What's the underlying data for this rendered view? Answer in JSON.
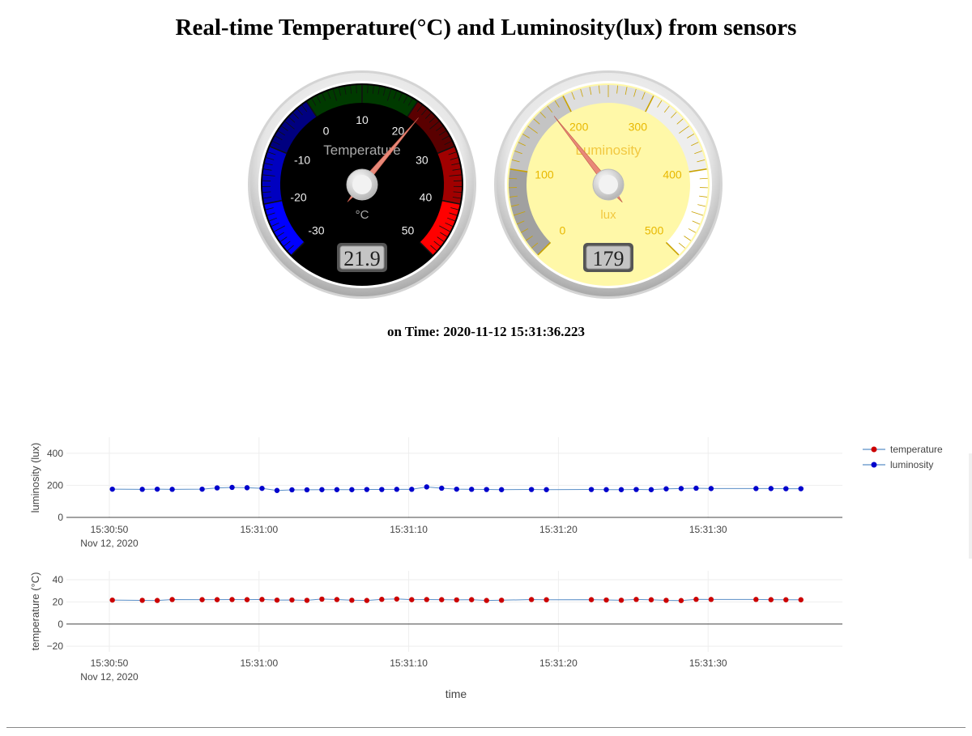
{
  "page": {
    "title": "Real-time Temperature(°C) and Luminosity(lux) from sensors",
    "time_prefix": "on Time:",
    "time_value": "2020-11-12 15:31:36.223"
  },
  "gauges": {
    "temperature": {
      "title": "Temperature",
      "units": "°C",
      "value": 21.9,
      "display": "21.9",
      "min": -30,
      "max": 50,
      "major_ticks": [
        "-30",
        "-20",
        "-10",
        "0",
        "10",
        "20",
        "30",
        "40",
        "50"
      ],
      "colors": {
        "plate": "#000000",
        "numbers": "#eeeeee",
        "title": "#aaaaaa",
        "needle": "#e88878"
      },
      "highlights": [
        {
          "from": -30,
          "to": -20,
          "color": "#0000ff"
        },
        {
          "from": -20,
          "to": -10,
          "color": "#0000c0"
        },
        {
          "from": -10,
          "to": 0,
          "color": "#000080"
        },
        {
          "from": 0,
          "to": 20,
          "color": "#003a00"
        },
        {
          "from": 20,
          "to": 30,
          "color": "#5a0000"
        },
        {
          "from": 30,
          "to": 40,
          "color": "#a00000"
        },
        {
          "from": 40,
          "to": 50,
          "color": "#ff0000"
        }
      ]
    },
    "luminosity": {
      "title": "Luminosity",
      "units": "lux",
      "value": 179,
      "display": "179",
      "min": 0,
      "max": 500,
      "major_ticks": [
        "0",
        "100",
        "200",
        "300",
        "400",
        "500"
      ],
      "colors": {
        "plate": "#fff8a8",
        "numbers": "#e8b800",
        "title": "#f2c840",
        "needle": "#e88878"
      },
      "highlights": [
        {
          "from": 0,
          "to": 100,
          "color": "#a0a0a0"
        },
        {
          "from": 100,
          "to": 200,
          "color": "#c4c4c4"
        },
        {
          "from": 200,
          "to": 300,
          "color": "#dedede"
        },
        {
          "from": 300,
          "to": 400,
          "color": "#eeeeee"
        },
        {
          "from": 400,
          "to": 500,
          "color": "#ffffff"
        }
      ]
    }
  },
  "chart_data": {
    "type": "line",
    "xlabel": "time",
    "x_range": [
      "15:30:50",
      "15:31:36"
    ],
    "x_ticks": [
      "15:30:50",
      "15:31:00",
      "15:31:10",
      "15:31:20",
      "15:31:30"
    ],
    "x_date_label": "Nov 12, 2020",
    "legend_position": "top-right",
    "grid": true,
    "x": [
      "15:30:50.2",
      "15:30:52.2",
      "15:30:53.2",
      "15:30:54.2",
      "15:30:56.2",
      "15:30:57.2",
      "15:30:58.2",
      "15:30:59.2",
      "15:31:00.2",
      "15:31:01.2",
      "15:31:02.2",
      "15:31:03.2",
      "15:31:04.2",
      "15:31:05.2",
      "15:31:06.2",
      "15:31:07.2",
      "15:31:08.2",
      "15:31:09.2",
      "15:31:10.2",
      "15:31:11.2",
      "15:31:12.2",
      "15:31:13.2",
      "15:31:14.2",
      "15:31:15.2",
      "15:31:16.2",
      "15:31:18.2",
      "15:31:19.2",
      "15:31:22.2",
      "15:31:23.2",
      "15:31:24.2",
      "15:31:25.2",
      "15:31:26.2",
      "15:31:27.2",
      "15:31:28.2",
      "15:31:29.2",
      "15:31:30.2",
      "15:31:33.2",
      "15:31:34.2",
      "15:31:35.2",
      "15:31:36.2"
    ],
    "series": [
      {
        "name": "temperature",
        "color": "#cc0000",
        "line_color": "#5a8fc8",
        "ylabel": "temperature (°C)",
        "ylim": [
          -25,
          48
        ],
        "y_ticks": [
          -20,
          0,
          20,
          40
        ],
        "values": [
          21.6,
          21.4,
          21.3,
          22.1,
          22.0,
          22.0,
          22.1,
          22.0,
          22.2,
          21.6,
          21.7,
          21.4,
          22.5,
          22.1,
          21.5,
          21.3,
          22.3,
          22.6,
          22.0,
          22.1,
          22.0,
          21.8,
          22.0,
          21.3,
          21.5,
          22.1,
          21.9,
          22.0,
          21.7,
          21.5,
          22.2,
          21.9,
          21.4,
          21.2,
          22.3,
          22.2,
          22.2,
          22.0,
          21.9,
          21.9
        ]
      },
      {
        "name": "luminosity",
        "color": "#0000cc",
        "line_color": "#5a8fc8",
        "ylabel": "luminosity (lux)",
        "ylim": [
          -5,
          500
        ],
        "y_ticks": [
          0,
          200,
          400
        ],
        "values": [
          176,
          175,
          176,
          175,
          176,
          184,
          187,
          185,
          181,
          168,
          172,
          172,
          173,
          173,
          173,
          174,
          174,
          175,
          175,
          190,
          182,
          176,
          175,
          174,
          173,
          174,
          173,
          174,
          173,
          173,
          174,
          173,
          178,
          180,
          182,
          180,
          180,
          180,
          179,
          179
        ]
      }
    ]
  }
}
